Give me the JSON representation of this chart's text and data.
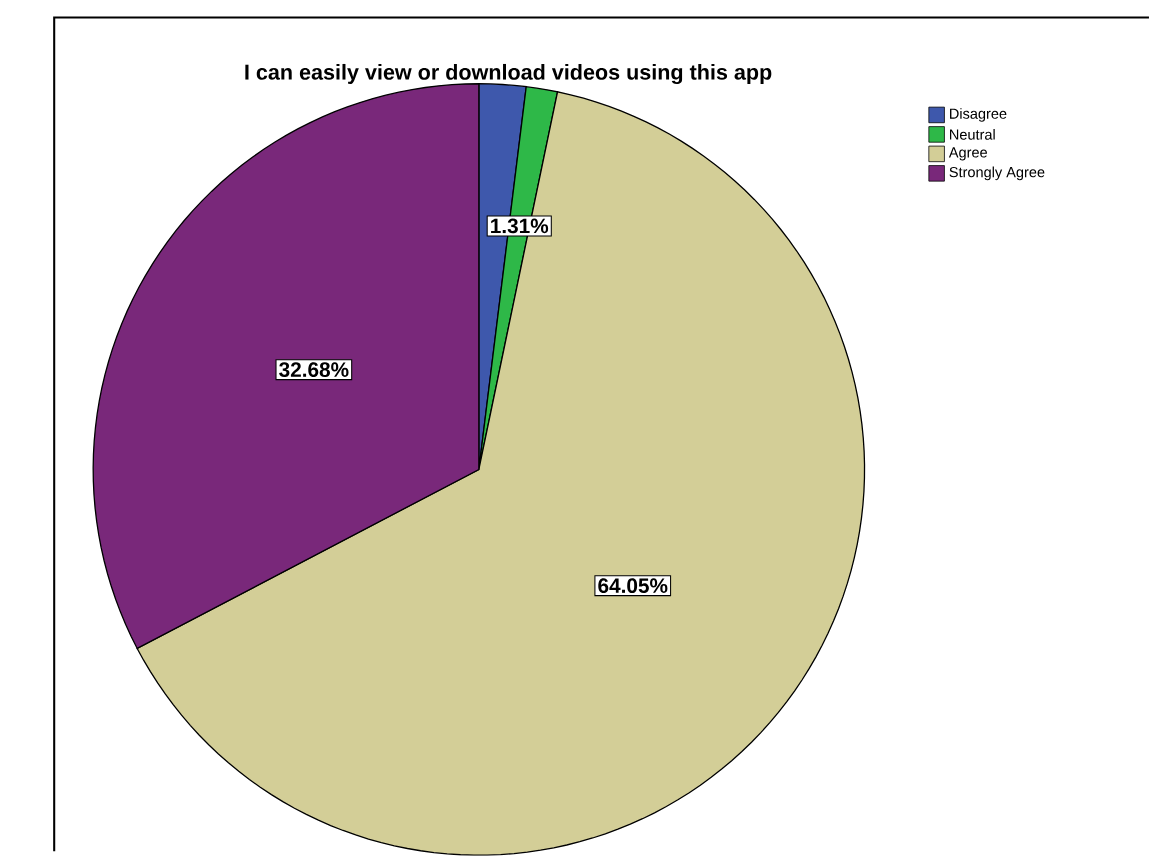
{
  "chart_data": {
    "type": "pie",
    "title": "I can easily view or download videos using this app",
    "categories": [
      "Disagree",
      "Neutral",
      "Agree",
      "Strongly Agree"
    ],
    "values": [
      1.96,
      1.31,
      64.05,
      32.68
    ],
    "colors": [
      "#3e58ac",
      "#2eb848",
      "#d3ce97",
      "#79287a"
    ],
    "value_labels": [
      null,
      "1.31%",
      "64.05%",
      "32.68%"
    ],
    "legend": "top right"
  }
}
